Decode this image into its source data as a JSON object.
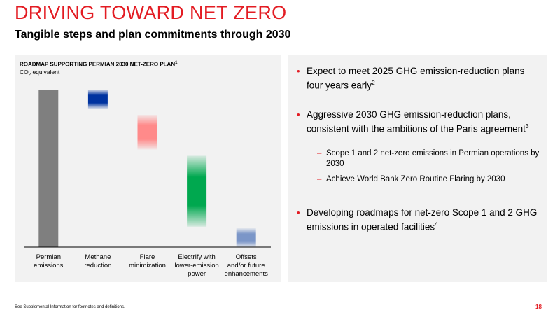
{
  "page": {
    "title": "DRIVING TOWARD NET ZERO",
    "subtitle": "Tangible steps and plan commitments through 2030",
    "footnote": "See Supplemental Information for footnotes and definitions.",
    "page_number": "18"
  },
  "chart_data": {
    "type": "bar",
    "subtype": "waterfall",
    "title": "ROADMAP SUPPORTING PERMIAN 2030 NET-ZERO PLAN",
    "title_footnote": "1",
    "subtitle_prefix": "CO",
    "subtitle_subscript": "2",
    "subtitle_suffix": " equivalent",
    "categories": [
      "Permian emissions",
      "Methane reduction",
      "Flare minimization",
      "Electrify with lower-emission power",
      "Offsets and/or future enhancements"
    ],
    "category_label_lines": [
      [
        "Permian",
        "emissions"
      ],
      [
        "Methane",
        "reduction"
      ],
      [
        "Flare",
        "minimization"
      ],
      [
        "Electrify with",
        "lower-emission",
        "power"
      ],
      [
        "Offsets",
        "and/or future",
        "enhancements"
      ]
    ],
    "bars": [
      {
        "bottom": 0,
        "top": 100,
        "style": "solid"
      },
      {
        "bottom": 88,
        "top": 100,
        "style": "gradient"
      },
      {
        "bottom": 62,
        "top": 84,
        "style": "gradient"
      },
      {
        "bottom": 13,
        "top": 58,
        "style": "gradient"
      },
      {
        "bottom": 0,
        "top": 12,
        "style": "gradient"
      }
    ],
    "colors": [
      "#7f7f7f",
      "#0033a0",
      "#ff8a8a",
      "#00a84f",
      "#7b96c8"
    ],
    "ylim": [
      0,
      100
    ],
    "grid": false,
    "legend": "none"
  },
  "bullets": [
    {
      "text": "Expect to meet 2025 GHG emission-reduction plans four years early",
      "sup": "2"
    },
    {
      "text": "Aggressive 2030 GHG emission-reduction plans, consistent with the ambitions of the Paris agreement",
      "sup": "3"
    },
    {
      "text": "Developing roadmaps for net-zero Scope 1 and 2 GHG emissions in operated facilities",
      "sup": "4"
    }
  ],
  "subbullets": [
    "Scope 1 and 2 net-zero emissions in Permian operations by 2030",
    "Achieve World Bank Zero Routine Flaring by 2030"
  ],
  "symbols": {
    "bullet": "•",
    "dash": "–"
  }
}
